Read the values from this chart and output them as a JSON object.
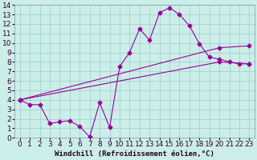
{
  "xlabel": "Windchill (Refroidissement éolien,°C)",
  "background_color": "#cceee8",
  "line_color": "#990099",
  "xlim": [
    -0.5,
    23.5
  ],
  "ylim": [
    0,
    14
  ],
  "xticks": [
    0,
    1,
    2,
    3,
    4,
    5,
    6,
    7,
    8,
    9,
    10,
    11,
    12,
    13,
    14,
    15,
    16,
    17,
    18,
    19,
    20,
    21,
    22,
    23
  ],
  "yticks": [
    0,
    1,
    2,
    3,
    4,
    5,
    6,
    7,
    8,
    9,
    10,
    11,
    12,
    13,
    14
  ],
  "line1_x": [
    0,
    1,
    2,
    3,
    4,
    5,
    6,
    7,
    8,
    9,
    10,
    11,
    12,
    13,
    14,
    15,
    16,
    17,
    18,
    19,
    20,
    21,
    22,
    23
  ],
  "line1_y": [
    4.0,
    3.5,
    3.5,
    1.5,
    1.7,
    1.8,
    1.2,
    0.1,
    3.7,
    1.1,
    7.5,
    9.0,
    11.5,
    10.3,
    13.2,
    13.7,
    13.0,
    11.8,
    9.9,
    8.5,
    8.3,
    8.0,
    7.8,
    7.8
  ],
  "line2_x": [
    0,
    20,
    23
  ],
  "line2_y": [
    4.0,
    9.5,
    9.7
  ],
  "line3_x": [
    0,
    20,
    23
  ],
  "line3_y": [
    4.0,
    8.0,
    7.8
  ],
  "grid_color": "#99cccc",
  "tick_fontsize": 6.5,
  "xlabel_fontsize": 6.5,
  "marker": "D",
  "markersize": 2.5,
  "linewidth": 0.8
}
